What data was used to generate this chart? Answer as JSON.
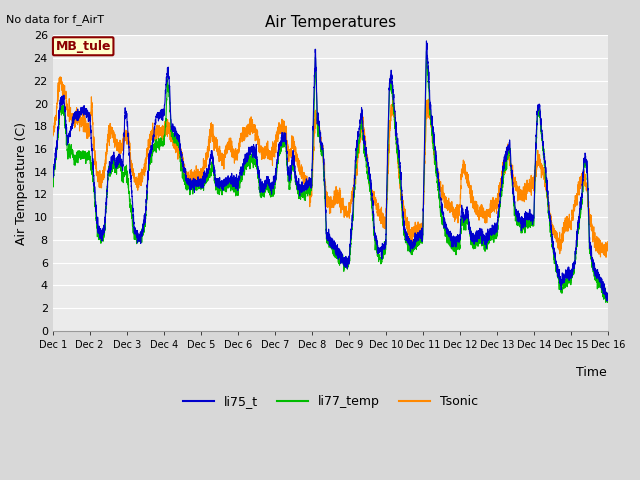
{
  "title": "Air Temperatures",
  "subtitle": "No data for f_AirT",
  "xlabel": "Time",
  "ylabel": "Air Temperature (C)",
  "ylim": [
    0,
    26
  ],
  "yticks": [
    0,
    2,
    4,
    6,
    8,
    10,
    12,
    14,
    16,
    18,
    20,
    22,
    24,
    26
  ],
  "xlim": [
    0,
    15
  ],
  "xtick_labels": [
    "Dec 1",
    "Dec 2",
    "Dec 3",
    "Dec 4",
    "Dec 5",
    "Dec 6",
    "Dec 7",
    "Dec 8",
    "Dec 9",
    "Dec 10",
    "Dec 11",
    "Dec 12",
    "Dec 13",
    "Dec 14",
    "Dec 15",
    "Dec 16"
  ],
  "xtick_positions": [
    0,
    1,
    2,
    3,
    4,
    5,
    6,
    7,
    8,
    9,
    10,
    11,
    12,
    13,
    14,
    15
  ],
  "legend_box_label": "MB_tule",
  "legend_box_color": "#ffffcc",
  "legend_box_border": "#8B0000",
  "legend_box_text_color": "#8B0000",
  "fig_bg_color": "#d8d8d8",
  "plot_bg_color": "#ebebeb",
  "grid_color": "#ffffff",
  "series": {
    "li75_t": {
      "color": "#0000cc",
      "lw": 0.8
    },
    "li77_temp": {
      "color": "#00bb00",
      "lw": 0.8
    },
    "Tsonic": {
      "color": "#ff8800",
      "lw": 0.8
    }
  }
}
